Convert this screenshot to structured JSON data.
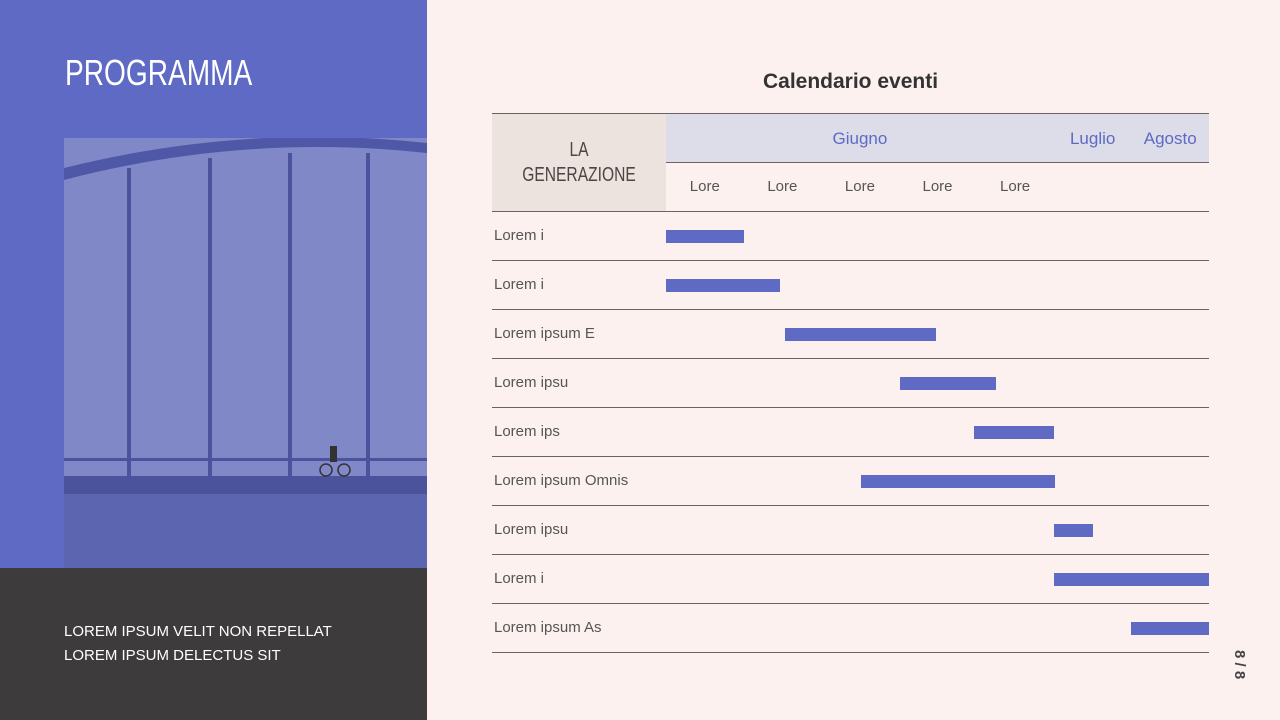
{
  "left_panel": {
    "title": "PROGRAMMA",
    "footer_lines": [
      "LOREM IPSUM VELIT NON REPELLAT",
      "LOREM IPSUM DELECTUS SIT"
    ]
  },
  "page_number": "8 / 8",
  "colors": {
    "accent": "#5e6ac4",
    "dark": "#3d3b3b",
    "background": "#fcf1ee"
  },
  "chart_data": {
    "type": "gantt",
    "title": "Calendario eventi",
    "corner_label": "LA GENERAZIONE",
    "months": [
      {
        "label": "Giugno",
        "col": 2.5
      },
      {
        "label": "Luglio",
        "col": 5.5
      },
      {
        "label": "Agosto",
        "col": 6.5
      }
    ],
    "columns": [
      "Lore",
      "Lore",
      "Lore",
      "Lore",
      "Lore",
      "",
      ""
    ],
    "rows": [
      {
        "label": "Lorem i",
        "start": 0,
        "end": 1
      },
      {
        "label": "Lorem i",
        "start": 0,
        "end": 1.47
      },
      {
        "label": "Lorem ipsum E",
        "start": 1.54,
        "end": 3.48
      },
      {
        "label": "Lorem ipsu",
        "start": 3.02,
        "end": 4.26
      },
      {
        "label": "Lorem ips",
        "start": 3.97,
        "end": 5
      },
      {
        "label": "Lorem ipsum Omnis",
        "start": 2.52,
        "end": 5.02
      },
      {
        "label": "Lorem ipsu",
        "start": 5,
        "end": 5.5
      },
      {
        "label": "Lorem i",
        "start": 5,
        "end": 7
      },
      {
        "label": "Lorem ipsum As",
        "start": 6,
        "end": 7
      }
    ]
  }
}
